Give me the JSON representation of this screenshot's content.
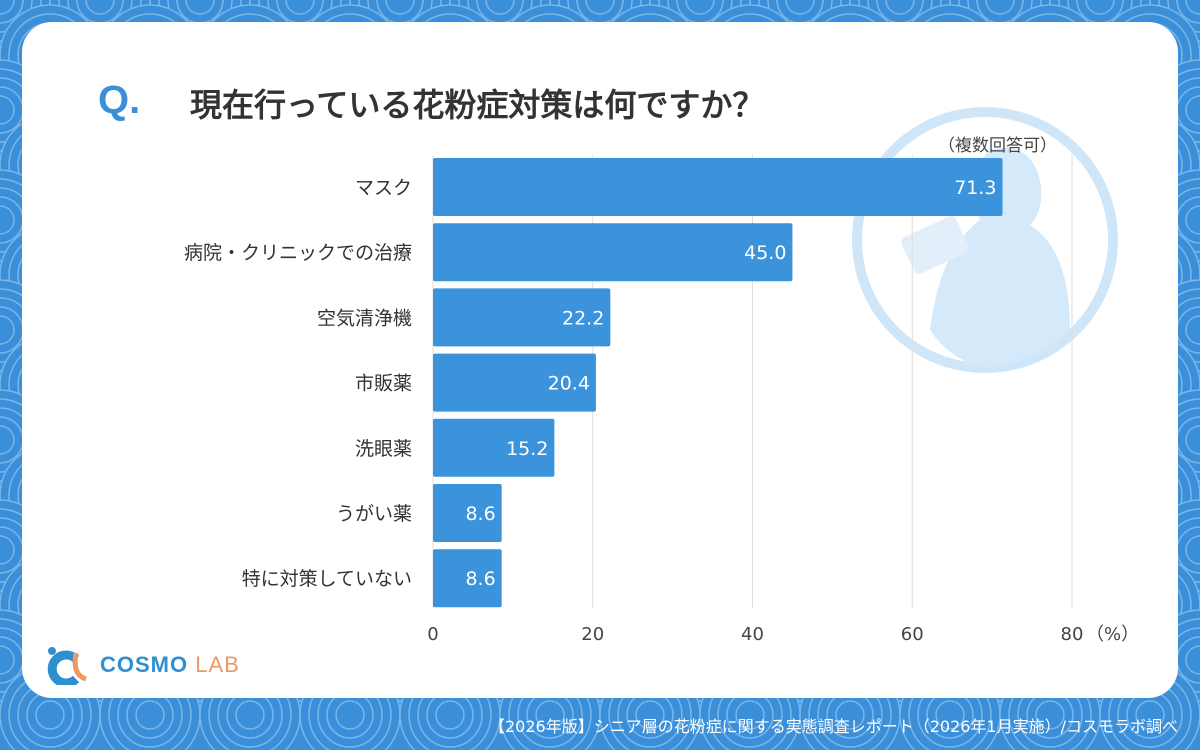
{
  "header": {
    "q_mark": "Q.",
    "title": "現在行っている花粉症対策は何ですか？",
    "note": "（複数回答可）"
  },
  "logo": {
    "brand": "COSMO",
    "lab": "LAB"
  },
  "footer": "【2026年版】シニア層の花粉症に関する実態調査レポート（2026年1月実施）/コスモラボ調べ",
  "colors": {
    "bar": "#3b93dc",
    "background": "#3b8fd8"
  },
  "chart_data": {
    "type": "bar",
    "orientation": "horizontal",
    "title": "現在行っている花粉症対策は何ですか？",
    "categories": [
      "マスク",
      "病院・クリニックでの治療",
      "空気清浄機",
      "市販薬",
      "洗眼薬",
      "うがい薬",
      "特に対策していない"
    ],
    "values": [
      71.3,
      45.0,
      22.2,
      20.4,
      15.2,
      8.6,
      8.6
    ],
    "value_labels": [
      "71.3",
      "45.0",
      "22.2",
      "20.4",
      "15.2",
      "8.6",
      "8.6"
    ],
    "xlim": [
      0,
      80
    ],
    "xticks": [
      "0",
      "20",
      "40",
      "60",
      "80"
    ],
    "xunit": "（%）",
    "grid": true
  }
}
